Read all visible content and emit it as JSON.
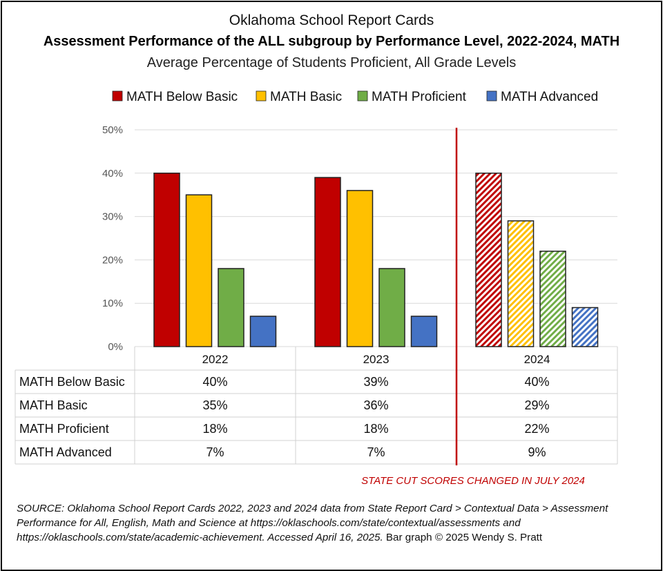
{
  "chart_data": {
    "type": "bar",
    "title": "Oklahoma School Report Cards",
    "subtitle": "Assessment Performance of the ALL subgroup by Performance Level, 2022-2024, MATH",
    "subtitle2": "Average Percentage of Students Proficient, All Grade Levels",
    "categories": [
      "2022",
      "2023",
      "2024"
    ],
    "series": [
      {
        "name": "MATH Below Basic",
        "values": [
          40,
          39,
          40
        ],
        "color": "#c00000",
        "labels": [
          "40%",
          "39%",
          "40%"
        ]
      },
      {
        "name": "MATH Basic",
        "values": [
          35,
          36,
          29
        ],
        "color": "#ffc000",
        "labels": [
          "35%",
          "36%",
          "29%"
        ]
      },
      {
        "name": "MATH Proficient",
        "values": [
          18,
          18,
          22
        ],
        "color": "#70ad47",
        "labels": [
          "18%",
          "18%",
          "22%"
        ]
      },
      {
        "name": "MATH Advanced",
        "values": [
          7,
          7,
          9
        ],
        "color": "#4472c4",
        "labels": [
          "7%",
          "7%",
          "9%"
        ]
      }
    ],
    "ylim": [
      0,
      50
    ],
    "yticks": [
      "0%",
      "10%",
      "20%",
      "30%",
      "40%",
      "50%"
    ],
    "hatched_category": "2024",
    "divider_color": "#c00000",
    "annotation": "STATE CUT SCORES CHANGED IN JULY 2024",
    "legend_position": "top",
    "grid": true
  },
  "source": {
    "italic": "SOURCE: Oklahoma School Report Cards 2022, 2023 and 2024 data from State Report Card > Contextual Data > Assessment Performance for All, English, Math and Science at https://oklaschools.com/state/contextual/assessments and https://oklaschools.com/state/academic-achievement. Accessed April 16, 2025.",
    "plain": " Bar graph © 2025 Wendy S. Pratt"
  }
}
